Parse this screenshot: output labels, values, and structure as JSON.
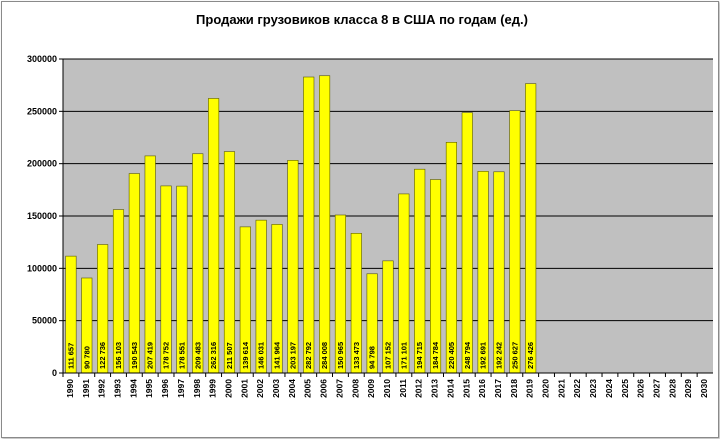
{
  "chart_data": {
    "type": "bar",
    "title": "Продажи грузовиков класса 8 в США по годам (ед.)",
    "xlabel": "",
    "ylabel": "",
    "ylim": [
      0,
      300000
    ],
    "yticks": [
      "0",
      "50000",
      "100000",
      "150000",
      "200000",
      "250000",
      "300000"
    ],
    "ytick_values": [
      0,
      50000,
      100000,
      150000,
      200000,
      250000,
      300000
    ],
    "grid": true,
    "legend": "none",
    "categories": [
      "1990",
      "1991",
      "1992",
      "1993",
      "1994",
      "1995",
      "1996",
      "1997",
      "1998",
      "1999",
      "2000",
      "2001",
      "2002",
      "2003",
      "2004",
      "2005",
      "2006",
      "2007",
      "2008",
      "2009",
      "2010",
      "2011",
      "2012",
      "2013",
      "2014",
      "2015",
      "2016",
      "2017",
      "2018",
      "2019",
      "2020",
      "2021",
      "2022",
      "2023",
      "2024",
      "2025",
      "2026",
      "2027",
      "2028",
      "2029",
      "2030"
    ],
    "values": [
      111657,
      90780,
      122736,
      156103,
      190543,
      207419,
      178752,
      178551,
      209483,
      262316,
      211507,
      139614,
      146031,
      141964,
      203197,
      282792,
      284008,
      150965,
      133473,
      94798,
      107152,
      171101,
      194715,
      184784,
      220405,
      248794,
      192691,
      192242,
      250627,
      276426,
      null,
      null,
      null,
      null,
      null,
      null,
      null,
      null,
      null,
      null,
      null
    ],
    "data_labels": [
      "111 657",
      "90 780",
      "122 736",
      "156 103",
      "190 543",
      "207 419",
      "178 752",
      "178 551",
      "209 483",
      "262 316",
      "211 507",
      "139 614",
      "146 031",
      "141 964",
      "203 197",
      "282 792",
      "284 008",
      "150 965",
      "133 473",
      "94 798",
      "107 152",
      "171 101",
      "194 715",
      "184 784",
      "220 405",
      "248 794",
      "192 691",
      "192 242",
      "250 627",
      "276 426",
      "",
      "",
      "",
      "",
      "",
      "",
      "",
      "",
      "",
      "",
      ""
    ],
    "colors": {
      "bar": "#ffff00",
      "bar_stroke": "#5a5a00",
      "plot_bg": "#c0c0c0",
      "grid": "#000000"
    }
  }
}
